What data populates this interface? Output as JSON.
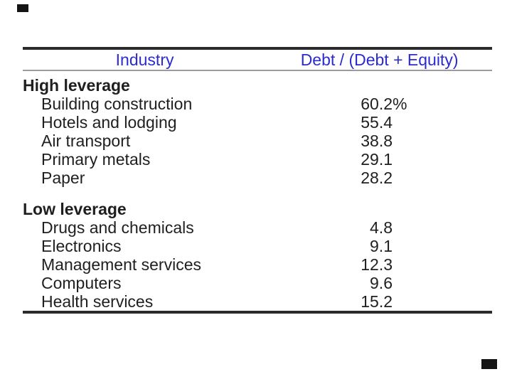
{
  "slide": {
    "background": "#ffffff"
  },
  "colors": {
    "column_header_text": "#2b2bd0",
    "body_text": "#1f1f1f",
    "thick_rule": "#2b2b2b",
    "thin_rule": "#9b9b9b",
    "corner_mark": "#141414"
  },
  "table": {
    "columns": {
      "industry": "Industry",
      "debt_ratio": "Debt / (Debt + Equity)"
    },
    "sections": [
      {
        "header": "High leverage",
        "rows": [
          {
            "label": "Building construction",
            "value": "60.2",
            "suffix": "%"
          },
          {
            "label": "Hotels and lodging",
            "value": "55.4",
            "suffix": ""
          },
          {
            "label": "Air transport",
            "value": "38.8",
            "suffix": ""
          },
          {
            "label": "Primary metals",
            "value": "29.1",
            "suffix": ""
          },
          {
            "label": "Paper",
            "value": "28.2",
            "suffix": ""
          }
        ]
      },
      {
        "header": "Low leverage",
        "rows": [
          {
            "label": "Drugs and chemicals",
            "value": "4.8",
            "suffix": ""
          },
          {
            "label": "Electronics",
            "value": "9.1",
            "suffix": ""
          },
          {
            "label": "Management services",
            "value": "12.3",
            "suffix": ""
          },
          {
            "label": "Computers",
            "value": "9.6",
            "suffix": ""
          },
          {
            "label": "Health services",
            "value": "15.2",
            "suffix": ""
          }
        ]
      }
    ]
  }
}
